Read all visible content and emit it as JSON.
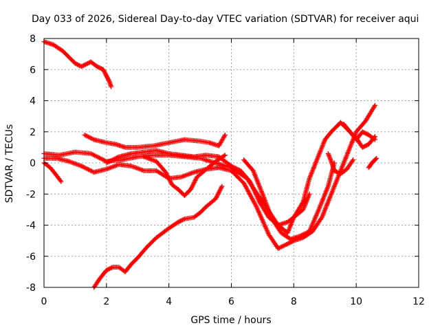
{
  "chart_data": {
    "type": "scatter",
    "title": "Day 033 of 2026, Sidereal Day-to-day VTEC variation (SDTVAR) for receiver aqui",
    "xlabel": "GPS time / hours",
    "ylabel": "SDTVAR / TECUs",
    "xlim": [
      0,
      12
    ],
    "ylim": [
      -8,
      8
    ],
    "xticks": [
      0,
      2,
      4,
      6,
      8,
      10,
      12
    ],
    "yticks": [
      -8,
      -6,
      -4,
      -2,
      0,
      2,
      4,
      6,
      8
    ],
    "grid": true,
    "legend": "none",
    "marker": "+",
    "color": "#ff0000",
    "series": [
      {
        "x": [
          0.0,
          0.3,
          0.6,
          0.8,
          1.0,
          1.2,
          1.4,
          1.5,
          1.7,
          1.9,
          2.0,
          2.1,
          2.15
        ],
        "values": [
          7.8,
          7.6,
          7.2,
          6.8,
          6.4,
          6.2,
          6.4,
          6.5,
          6.2,
          6.0,
          5.6,
          5.2,
          4.9
        ]
      },
      {
        "x": [
          0.0,
          0.2,
          0.4,
          0.55
        ],
        "values": [
          0.0,
          -0.3,
          -0.8,
          -1.2
        ]
      },
      {
        "x": [
          0.0,
          0.5,
          1.0,
          1.5,
          2.0,
          2.5,
          3.0,
          3.5,
          4.0,
          4.5,
          5.0,
          5.5,
          6.0,
          6.5,
          7.0,
          7.5,
          7.8,
          8.0,
          8.3,
          8.5,
          8.8,
          9.0,
          9.2,
          9.4,
          9.5,
          9.7,
          10.0,
          10.2,
          10.4,
          10.6
        ],
        "values": [
          0.6,
          0.5,
          0.7,
          0.6,
          0.1,
          0.2,
          0.4,
          0.5,
          0.5,
          0.4,
          0.3,
          0.0,
          -0.3,
          -1.0,
          -2.5,
          -4.0,
          -4.5,
          -3.5,
          -2.5,
          -1.0,
          0.5,
          1.5,
          2.0,
          2.4,
          2.6,
          2.2,
          1.6,
          1.0,
          1.2,
          1.7
        ]
      },
      {
        "x": [
          0.0,
          0.4,
          0.8,
          1.2,
          1.6,
          2.0,
          2.4,
          2.8,
          3.2,
          3.6,
          4.0,
          4.4,
          4.8,
          5.2,
          5.6,
          6.0,
          6.4,
          6.8,
          7.2,
          7.5,
          7.8,
          8.0,
          8.3,
          8.6,
          8.9,
          9.2,
          9.5,
          9.8,
          10.0,
          10.3,
          10.6
        ],
        "values": [
          0.3,
          0.3,
          0.1,
          -0.2,
          -0.6,
          -0.4,
          -0.1,
          -0.2,
          -0.5,
          -0.5,
          -1.0,
          -0.9,
          -0.6,
          -0.4,
          -0.3,
          -0.5,
          -1.3,
          -2.8,
          -4.6,
          -5.5,
          -5.2,
          -5.0,
          -4.8,
          -4.4,
          -3.5,
          -2.0,
          -0.5,
          1.0,
          2.0,
          2.7,
          3.7
        ]
      },
      {
        "x": [
          1.3,
          1.6,
          2.0,
          2.3,
          2.6,
          3.0,
          3.5,
          4.0,
          4.5,
          5.0,
          5.3,
          5.6,
          5.8
        ],
        "values": [
          1.8,
          1.5,
          1.3,
          1.2,
          1.0,
          1.0,
          1.1,
          1.3,
          1.5,
          1.4,
          1.3,
          1.1,
          1.8
        ]
      },
      {
        "x": [
          2.0,
          2.4,
          2.8,
          3.2,
          3.6,
          4.0,
          4.4,
          4.8,
          5.2,
          5.6,
          6.0,
          6.3,
          6.6,
          6.9,
          7.2,
          7.5,
          7.8,
          8.0,
          8.3,
          8.5
        ],
        "values": [
          0.0,
          0.4,
          0.6,
          0.7,
          0.8,
          0.6,
          0.5,
          0.4,
          0.5,
          0.4,
          -0.2,
          -0.5,
          -1.2,
          -2.5,
          -3.5,
          -4.0,
          -3.8,
          -3.5,
          -3.0,
          -2.0
        ]
      },
      {
        "x": [
          3.2,
          3.6,
          3.9,
          4.1,
          4.3,
          4.5,
          4.7,
          4.9,
          5.2,
          5.5,
          5.8
        ],
        "values": [
          0.4,
          0.1,
          -0.6,
          -1.4,
          -1.7,
          -2.1,
          -1.7,
          -0.9,
          -0.4,
          0.1,
          0.5
        ]
      },
      {
        "x": [
          1.6,
          1.8,
          2.0,
          2.2,
          2.4,
          2.6,
          2.8,
          3.0,
          3.3,
          3.6,
          4.0,
          4.3,
          4.5,
          4.8,
          5.0,
          5.2,
          5.5,
          5.7
        ],
        "values": [
          -8.0,
          -7.4,
          -6.9,
          -6.7,
          -6.7,
          -7.0,
          -6.5,
          -6.1,
          -5.4,
          -4.8,
          -4.2,
          -3.8,
          -3.6,
          -3.5,
          -3.2,
          -2.8,
          -2.3,
          -1.5
        ]
      },
      {
        "x": [
          6.4,
          6.7,
          7.0,
          7.3,
          7.6,
          7.9,
          8.2,
          8.5,
          8.8,
          9.1,
          9.3
        ],
        "values": [
          0.2,
          -0.5,
          -2.0,
          -3.6,
          -4.5,
          -4.9,
          -4.7,
          -4.4,
          -3.0,
          -1.5,
          0.0
        ]
      },
      {
        "x": [
          9.1,
          9.2,
          9.3,
          9.5,
          9.7,
          9.9
        ],
        "values": [
          0.6,
          0.1,
          -0.5,
          -0.7,
          -0.4,
          0.2
        ]
      },
      {
        "x": [
          10.4,
          10.5,
          10.6,
          10.65
        ],
        "values": [
          -0.3,
          0.0,
          0.2,
          0.3
        ]
      },
      {
        "x": [
          9.6,
          9.8,
          10.0,
          10.2,
          10.4,
          10.6
        ],
        "values": [
          2.5,
          2.0,
          1.5,
          2.0,
          1.8,
          1.5
        ]
      }
    ]
  }
}
